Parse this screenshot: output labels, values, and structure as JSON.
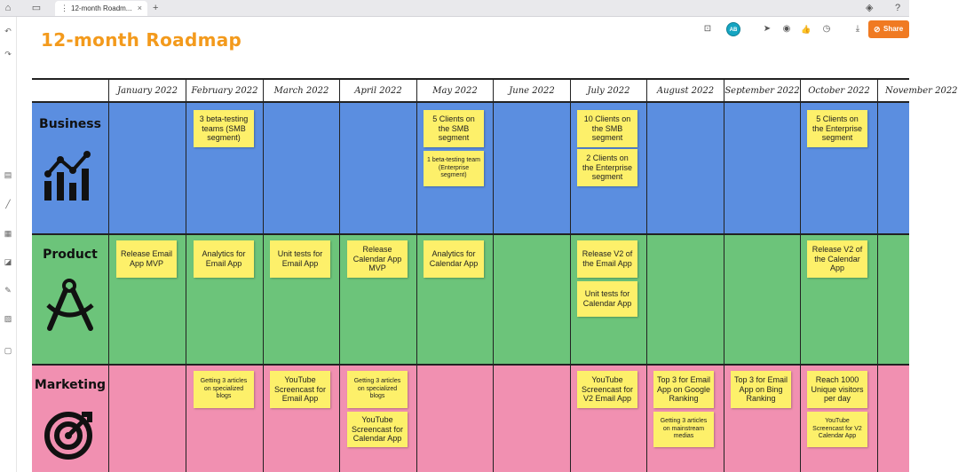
{
  "browser": {
    "tab_title": "12-month Roadm...",
    "new_tab_icon": "+",
    "home_icon": "⌂",
    "folder_icon": "▭",
    "tab_menu_icon": "⋮",
    "tab_close_icon": "×",
    "help_icon": "?",
    "settings_icon": "◈"
  },
  "left_rail": {
    "undo_icon": "↶",
    "redo_icon": "↷",
    "sticky_icon": "▤",
    "line_icon": "╱",
    "template_icon": "▦",
    "comment_icon": "◪",
    "draw_icon": "✎",
    "image_icon": "▨",
    "frame_icon": "▢"
  },
  "board": {
    "title": "12-month Roadmap",
    "avatar_initials": "AB",
    "share_label": "Share",
    "share_icon": "⊘",
    "tool_icons": {
      "present": "⊡",
      "cursor": "➤",
      "view": "◉",
      "like": "👍",
      "timer": "◷",
      "download": "⤓"
    }
  },
  "months": [
    "January 2022",
    "February 2022",
    "March 2022",
    "April 2022",
    "May 2022",
    "June 2022",
    "July 2022",
    "August 2022",
    "September 2022",
    "October 2022",
    "November 2022"
  ],
  "lanes": {
    "business": {
      "title": "Business",
      "icon": "bar-chart-icon"
    },
    "product": {
      "title": "Product",
      "icon": "compass-icon"
    },
    "marketing": {
      "title": "Marketing",
      "icon": "target-icon"
    }
  },
  "notes": {
    "business": {
      "feb": "3 beta-testing teams (SMB segment)",
      "may_1": "5 Clients on the SMB segment",
      "may_2": "1 beta-testing team (Enterprise segment)",
      "jul_1": "10 Clients on the SMB segment",
      "jul_2": "2 Clients on the Enterprise segment",
      "oct": "5 Clients on the Enterprise segment"
    },
    "product": {
      "jan": "Release Email App MVP",
      "feb": "Analytics for Email App",
      "mar": "Unit tests for Email App",
      "apr": "Release Calendar App MVP",
      "may": "Analytics for Calendar App",
      "jul_1": "Release V2 of the Email App",
      "jul_2": "Unit tests for Calendar App",
      "oct": "Release V2 of the Calendar App"
    },
    "marketing": {
      "feb": "Getting 3 articles on specialized blogs",
      "mar": "YouTube Screencast for Email App",
      "apr_1": "Getting 3 articles on specialized blogs",
      "apr_2": "YouTube Screencast for Calendar App",
      "jul": "YouTube Screencast for V2 Email App",
      "aug_1": "Top 3 for Email App on Google Ranking",
      "aug_2": "Getting 3 articles on mainstream medias",
      "sep": "Top 3 for Email App on Bing Ranking",
      "oct_1": "Reach 1000 Unique visitors per day",
      "oct_2": "YouTube Screencast for V2 Calendar App"
    }
  },
  "colors": {
    "business": "#5b8ee0",
    "product": "#6cc47a",
    "marketing": "#f190b1",
    "sticky": "#fdf06a",
    "title": "#f39a1c",
    "share": "#f07a22"
  }
}
